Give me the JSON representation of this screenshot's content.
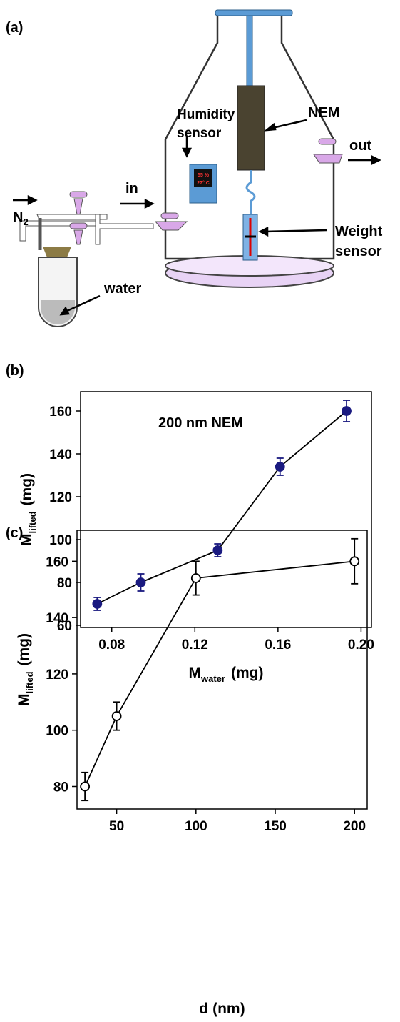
{
  "diagram": {
    "panel_label": "(a)",
    "humidity_label": [
      "Humidity",
      "sensor"
    ],
    "nem_label": "NEM",
    "out_label": "out",
    "in_label": "in",
    "n2_label": {
      "main": "N",
      "sub": "2"
    },
    "weight_label": [
      "Weight",
      "sensor"
    ],
    "water_label": "water",
    "display": [
      "55 %",
      "27° C"
    ]
  },
  "chart_data": [
    {
      "type": "line",
      "panel_label": "(b)",
      "annotation": "200 nm NEM",
      "x_label": [
        {
          "text": "M"
        },
        {
          "text": "water",
          "sub": true
        },
        {
          "text": "(mg)"
        }
      ],
      "y_label": [
        {
          "text": "M"
        },
        {
          "text": "lifted",
          "sub": true
        },
        {
          "text": "(mg)"
        }
      ],
      "x": [
        0.073,
        0.094,
        0.131,
        0.161,
        0.193
      ],
      "series": [
        {
          "values": [
            70,
            80,
            95,
            134,
            160
          ],
          "errors": [
            3,
            4,
            3,
            4,
            5
          ],
          "color": "#1a1a80",
          "marker": "filled"
        }
      ],
      "xlim": [
        0.065,
        0.205
      ],
      "xticks": [
        0.08,
        0.12,
        0.16,
        {
          "value": 0.2,
          "label": "0.20"
        }
      ],
      "ylim": [
        59,
        169
      ],
      "yticks": [
        60,
        80,
        100,
        120,
        140,
        160
      ]
    },
    {
      "type": "line",
      "panel_label": "(c)",
      "x_label": [
        {
          "text": "d (nm)"
        }
      ],
      "y_label": [
        {
          "text": "M"
        },
        {
          "text": "lifted",
          "sub": true
        },
        {
          "text": "(mg)"
        }
      ],
      "x": [
        30,
        50,
        100,
        200
      ],
      "series": [
        {
          "values": [
            80,
            105,
            154,
            160
          ],
          "errors": [
            5,
            5,
            6,
            8
          ],
          "color": "#000000",
          "marker": "open"
        }
      ],
      "xlim": [
        25,
        208
      ],
      "xticks": [
        50,
        100,
        150,
        200
      ],
      "ylim": [
        72,
        171
      ],
      "yticks": [
        80,
        100,
        120,
        140,
        160
      ]
    }
  ]
}
